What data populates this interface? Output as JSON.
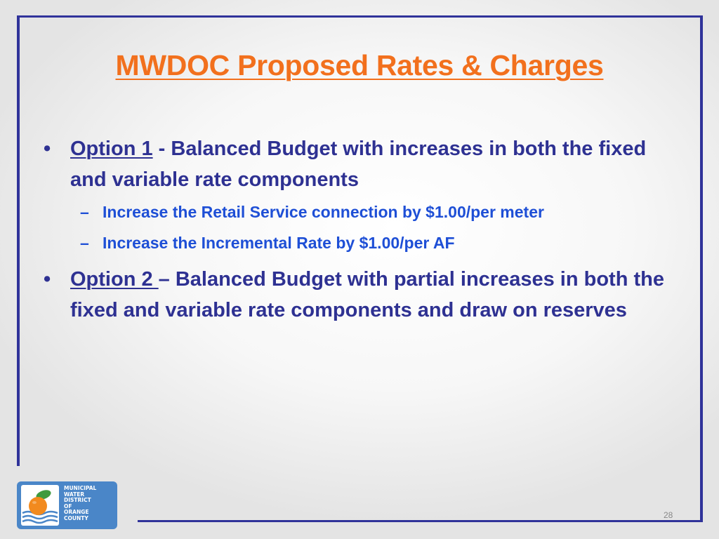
{
  "slide": {
    "title": "MWDOC Proposed Rates & Charges",
    "page_number": "28"
  },
  "option1": {
    "label": "Option 1",
    "text": " - Balanced Budget with increases in both the fixed and variable rate components",
    "subitems": [
      "Increase the Retail Service connection by $1.00/per meter",
      "Increase the Incremental Rate by $1.00/per AF"
    ]
  },
  "option2": {
    "label": "Option 2 ",
    "text": "– Balanced Budget with partial increases in both the fixed and variable rate components and draw on reserves"
  },
  "logo": {
    "lines": [
      "MUNICIPAL",
      "WATER",
      "DISTRICT",
      "OF",
      "ORANGE",
      "COUNTY"
    ]
  },
  "colors": {
    "frame": "#30339a",
    "title": "#f2701d",
    "bullet_text": "#2e3192",
    "sub_text": "#1e4fd6",
    "logo_bg": "#4a86c8"
  }
}
